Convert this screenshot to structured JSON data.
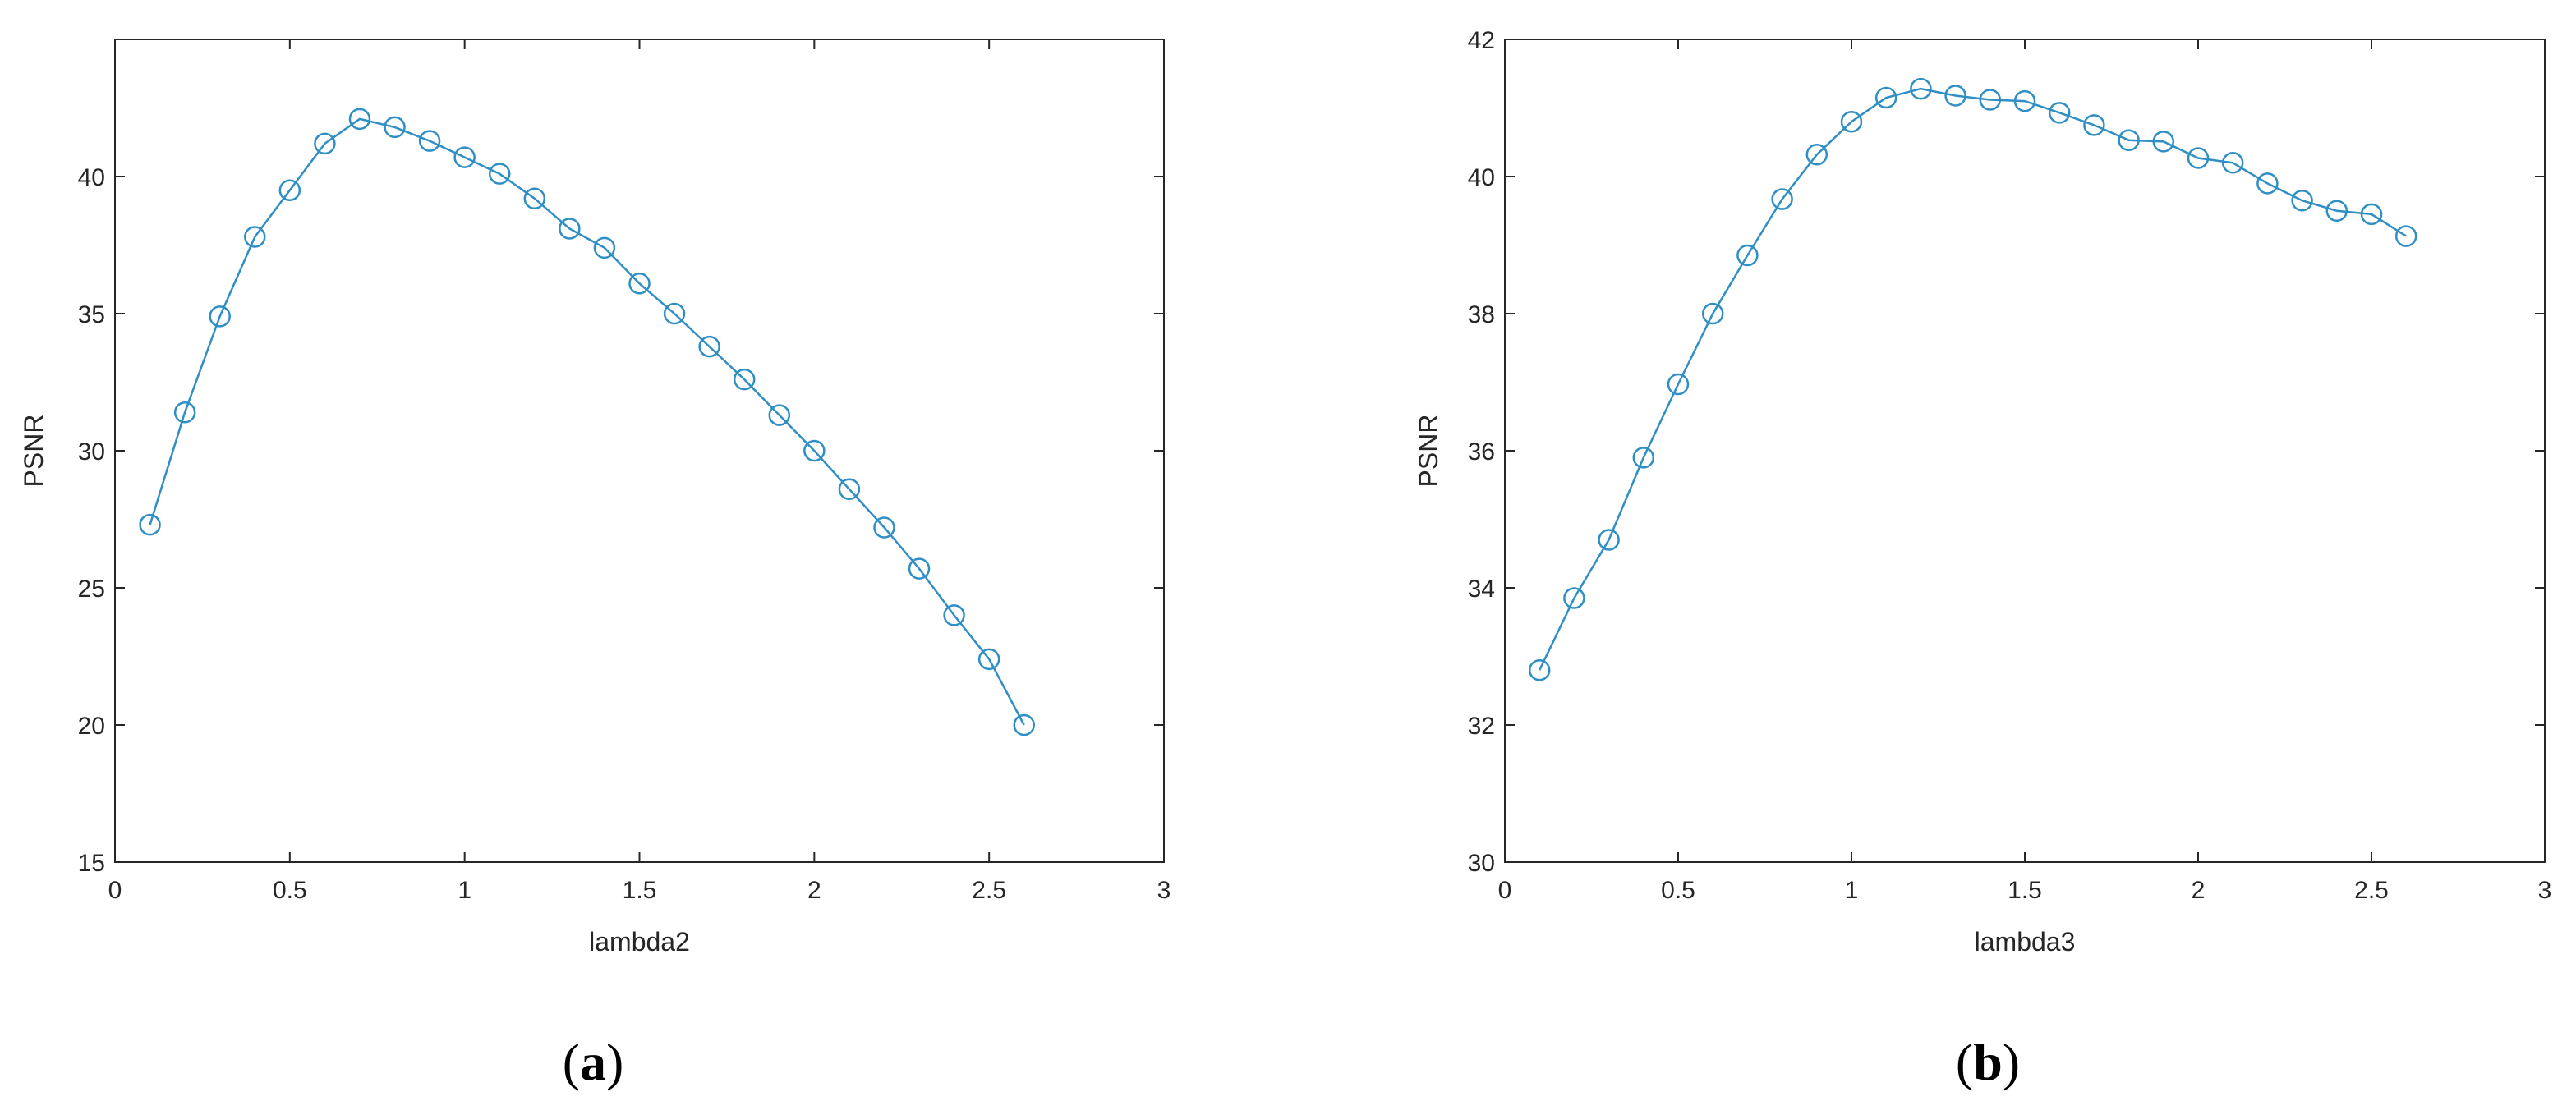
{
  "figure": {
    "line_color": "#2f8fc4",
    "axis_color": "#262626"
  },
  "chart_data": [
    {
      "type": "line",
      "panel": "a",
      "caption": "(a)",
      "caption_letter": "a",
      "xlabel": "lambda2",
      "ylabel": "PSNR",
      "xlim": [
        0,
        3
      ],
      "ylim": [
        15,
        45
      ],
      "xticks": [
        0,
        0.5,
        1,
        1.5,
        2,
        2.5,
        3
      ],
      "xtick_labels": [
        "0",
        "0.5",
        "1",
        "1.5",
        "2",
        "2.5",
        "3"
      ],
      "yticks": [
        15,
        20,
        25,
        30,
        35,
        40
      ],
      "ytick_labels": [
        "15",
        "20",
        "25",
        "30",
        "35",
        "40"
      ],
      "grid": false,
      "marker": "circle",
      "series": [
        {
          "x": [
            0.1,
            0.2,
            0.3,
            0.4,
            0.5,
            0.6,
            0.7,
            0.8,
            0.9,
            1.0,
            1.1,
            1.2,
            1.3,
            1.4,
            1.5,
            1.6,
            1.7,
            1.8,
            1.9,
            2.0,
            2.1,
            2.2,
            2.3,
            2.4,
            2.5,
            2.6
          ],
          "y": [
            27.3,
            31.4,
            34.9,
            37.8,
            39.5,
            41.2,
            42.1,
            41.8,
            41.3,
            40.7,
            40.1,
            39.2,
            38.1,
            37.4,
            36.1,
            35.0,
            33.8,
            32.6,
            31.3,
            30.0,
            28.6,
            27.2,
            25.7,
            24.0,
            22.4,
            20.0
          ]
        }
      ]
    },
    {
      "type": "line",
      "panel": "b",
      "caption": "(b)",
      "caption_letter": "b",
      "xlabel": "lambda3",
      "ylabel": "PSNR",
      "xlim": [
        0,
        3
      ],
      "ylim": [
        30,
        42
      ],
      "xticks": [
        0,
        0.5,
        1,
        1.5,
        2,
        2.5,
        3
      ],
      "xtick_labels": [
        "0",
        "0.5",
        "1",
        "1.5",
        "2",
        "2.5",
        "3"
      ],
      "yticks": [
        30,
        32,
        34,
        36,
        38,
        40,
        42
      ],
      "ytick_labels": [
        "30",
        "32",
        "34",
        "36",
        "38",
        "40",
        "42"
      ],
      "grid": false,
      "marker": "circle",
      "series": [
        {
          "x": [
            0.1,
            0.2,
            0.3,
            0.4,
            0.5,
            0.6,
            0.7,
            0.8,
            0.9,
            1.0,
            1.1,
            1.2,
            1.3,
            1.4,
            1.5,
            1.6,
            1.7,
            1.8,
            1.9,
            2.0,
            2.1,
            2.2,
            2.3,
            2.4,
            2.5,
            2.6
          ],
          "y": [
            32.8,
            33.85,
            34.7,
            35.9,
            36.97,
            38.0,
            38.85,
            39.67,
            40.32,
            40.8,
            41.15,
            41.28,
            41.18,
            41.12,
            41.1,
            40.93,
            40.75,
            40.53,
            40.51,
            40.27,
            40.2,
            39.9,
            39.65,
            39.5,
            39.45,
            39.13
          ]
        }
      ]
    }
  ]
}
